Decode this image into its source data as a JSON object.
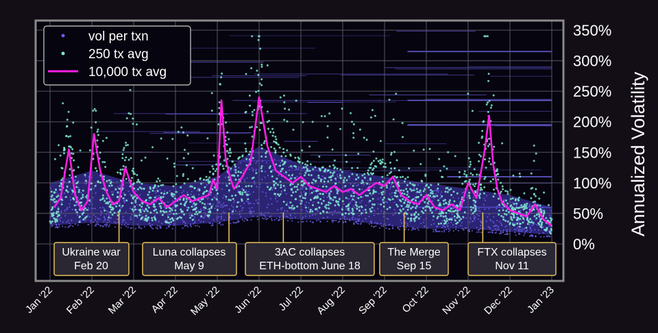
{
  "chart_data": {
    "type": "scatter",
    "ylabel": "Annualized Volatility",
    "ylim": [
      0,
      3.6
    ],
    "y_ticks": [
      "0%",
      "50%",
      "100%",
      "150%",
      "200%",
      "250%",
      "300%",
      "350%"
    ],
    "x_ticks": [
      "Jan '22",
      "Feb '22",
      "Mar '22",
      "Apr '22",
      "May '22",
      "Jun '22",
      "Jul '22",
      "Aug '22",
      "Sep '22",
      "Oct '22",
      "Nov '22",
      "Dec '22",
      "Jan '23"
    ],
    "grid": true,
    "legend_position": "top-left",
    "series": [
      {
        "name": "vol per txn",
        "color": "#6a5fe8",
        "marker": "dot"
      },
      {
        "name": "250 tx avg",
        "color": "#7fe8d0",
        "marker": "dot"
      },
      {
        "name": "10,000 tx avg",
        "color": "#ff1ee6",
        "marker": "line",
        "x": [
          0.1,
          0.25,
          0.45,
          0.6,
          0.75,
          0.9,
          1.05,
          1.2,
          1.35,
          1.5,
          1.65,
          1.8,
          2.0,
          2.2,
          2.4,
          2.6,
          2.8,
          3.0,
          3.2,
          3.4,
          3.6,
          3.8,
          3.9,
          4.0,
          4.1,
          4.2,
          4.3,
          4.4,
          4.5,
          4.6,
          4.8,
          5.0,
          5.2,
          5.4,
          5.6,
          5.8,
          6.0,
          6.2,
          6.4,
          6.6,
          6.8,
          7.0,
          7.2,
          7.4,
          7.6,
          7.8,
          8.0,
          8.2,
          8.4,
          8.6,
          8.8,
          9.0,
          9.2,
          9.4,
          9.6,
          9.8,
          10.0,
          10.2,
          10.4,
          10.5,
          10.6,
          10.7,
          10.8,
          11.0,
          11.2,
          11.4,
          11.6,
          11.8,
          12.0
        ],
        "y": [
          0.6,
          0.75,
          1.55,
          0.8,
          0.55,
          0.7,
          1.8,
          1.2,
          0.85,
          0.65,
          0.7,
          1.25,
          0.85,
          0.7,
          0.65,
          0.75,
          0.6,
          0.7,
          0.8,
          0.7,
          0.75,
          0.8,
          1.05,
          0.9,
          2.35,
          1.4,
          1.1,
          0.9,
          1.0,
          1.1,
          1.35,
          2.4,
          1.6,
          1.2,
          1.1,
          1.0,
          1.1,
          0.95,
          0.9,
          0.85,
          0.95,
          0.85,
          0.9,
          0.8,
          0.9,
          1.0,
          0.95,
          1.1,
          0.8,
          0.7,
          0.65,
          0.8,
          0.6,
          0.55,
          0.65,
          0.55,
          1.0,
          0.75,
          1.55,
          2.1,
          1.3,
          0.9,
          0.7,
          0.55,
          0.5,
          0.45,
          0.65,
          0.4,
          0.3
        ]
      },
      {
        "name": "vol per txn band",
        "role": "envelope",
        "x": [
          0,
          1,
          2,
          3,
          4,
          5,
          6,
          7,
          8,
          9,
          10,
          11,
          12
        ],
        "lower": [
          0.3,
          0.35,
          0.3,
          0.3,
          0.35,
          0.45,
          0.4,
          0.4,
          0.3,
          0.25,
          0.25,
          0.2,
          0.15
        ],
        "upper": [
          1.0,
          1.2,
          1.0,
          0.95,
          1.1,
          1.6,
          1.3,
          1.2,
          1.1,
          1.0,
          0.9,
          0.8,
          0.6
        ]
      }
    ],
    "annotations": [
      {
        "x": 1.65,
        "lines": [
          "Ukraine war",
          "Feb 20"
        ]
      },
      {
        "x": 4.28,
        "lines": [
          "Luna collapses",
          "May 9"
        ]
      },
      {
        "x": 5.58,
        "lines": [
          "3AC collapses",
          "ETH-bottom June 18"
        ]
      },
      {
        "x": 8.47,
        "lines": [
          "The Merge",
          "Sep 15"
        ]
      },
      {
        "x": 10.35,
        "lines": [
          "FTX collapses",
          "Nov 11"
        ]
      }
    ]
  },
  "colors": {
    "background": "#130e16",
    "plot_bg": "#06040f",
    "grid": "#5a5a6a",
    "frame": "#8a8a8a",
    "annotation_box": "#2a2733",
    "annotation_border": "#e8c25a"
  }
}
